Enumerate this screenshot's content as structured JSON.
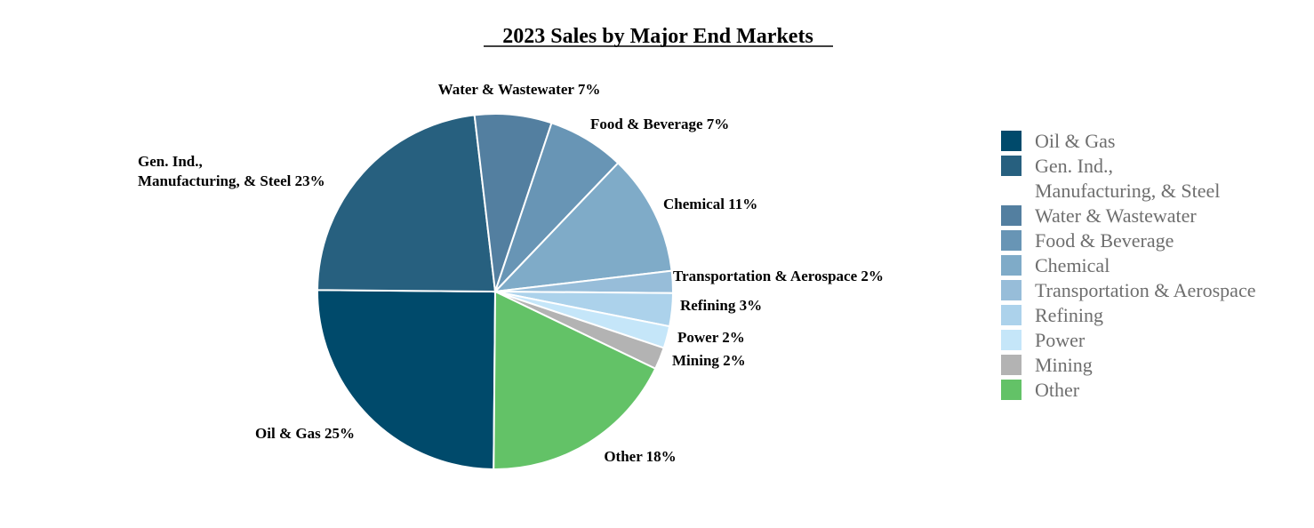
{
  "chart_data": {
    "type": "pie",
    "title": "2023 Sales by Major End Markets",
    "legend_position": "right",
    "slices": [
      {
        "name": "Oil & Gas",
        "legend": [
          "Oil & Gas"
        ],
        "label": [
          "Oil & Gas 25%"
        ],
        "value": 25,
        "color": "#004a6b"
      },
      {
        "name": "Gen. Ind., Manufacturing, & Steel",
        "legend": [
          "Gen. Ind.,",
          "Manufacturing, & Steel"
        ],
        "label": [
          "Gen. Ind.,",
          "Manufacturing, & Steel 23%"
        ],
        "value": 23,
        "color": "#27607f"
      },
      {
        "name": "Water & Wastewater",
        "legend": [
          "Water & Wastewater"
        ],
        "label": [
          "Water & Wastewater 7%"
        ],
        "value": 7,
        "color": "#537fa0"
      },
      {
        "name": "Food & Beverage",
        "legend": [
          "Food & Beverage"
        ],
        "label": [
          "Food & Beverage 7%"
        ],
        "value": 7,
        "color": "#6895b5"
      },
      {
        "name": "Chemical",
        "legend": [
          "Chemical"
        ],
        "label": [
          "Chemical 11%"
        ],
        "value": 11,
        "color": "#7fabc8"
      },
      {
        "name": "Transportation & Aerospace",
        "legend": [
          "Transportation & Aerospace"
        ],
        "label": [
          "Transportation & Aerospace 2%"
        ],
        "value": 2,
        "color": "#97bdd9"
      },
      {
        "name": "Refining",
        "legend": [
          "Refining"
        ],
        "label": [
          "Refining 3%"
        ],
        "value": 3,
        "color": "#acd2eb"
      },
      {
        "name": "Power",
        "legend": [
          "Power"
        ],
        "label": [
          "Power 2%"
        ],
        "value": 2,
        "color": "#c5e6f9"
      },
      {
        "name": "Mining",
        "legend": [
          "Mining"
        ],
        "label": [
          "Mining 2%"
        ],
        "value": 2,
        "color": "#b3b3b3"
      },
      {
        "name": "Other",
        "legend": [
          "Other"
        ],
        "label": [
          "Other 18%"
        ],
        "value": 18,
        "color": "#63c267"
      }
    ]
  }
}
